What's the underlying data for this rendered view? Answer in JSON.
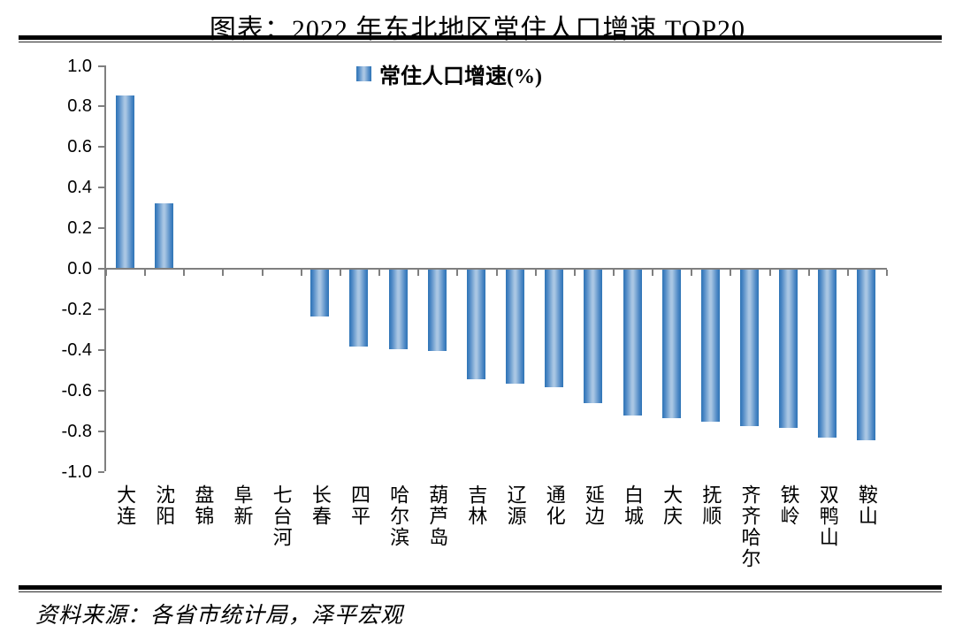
{
  "page": {
    "title": "图表：2022 年东北地区常住人口增速 TOP20",
    "source": "资料来源：各省市统计局，泽平宏观"
  },
  "legend": {
    "label": "常住人口增速(%)"
  },
  "colors": {
    "bar_edge": "#2E74B5",
    "bar_center": "#A9C6E3",
    "axis_line": "#7F7F7F",
    "text": "#000000",
    "rule": "#000000",
    "background": "#FFFFFF"
  },
  "chart_data": {
    "type": "bar",
    "title": "图表：2022 年东北地区常住人口增速 TOP20",
    "categories": [
      "大连",
      "沈阳",
      "盘锦",
      "阜新",
      "七台河",
      "长春",
      "四平",
      "哈尔滨",
      "葫芦岛",
      "吉林",
      "辽源",
      "通化",
      "延边",
      "白城",
      "大庆",
      "抚顺",
      "齐齐哈尔",
      "铁岭",
      "双鸭山",
      "鞍山"
    ],
    "series": [
      {
        "name": "常住人口增速(%)",
        "values": [
          0.85,
          0.32,
          0.0,
          0.0,
          0.0,
          -0.23,
          -0.38,
          -0.39,
          -0.4,
          -0.54,
          -0.56,
          -0.58,
          -0.66,
          -0.72,
          -0.73,
          -0.75,
          -0.77,
          -0.78,
          -0.83,
          -0.84
        ]
      }
    ],
    "xlabel": "",
    "ylabel": "",
    "ylim": [
      -1.0,
      1.0
    ],
    "ytick_step": 0.2,
    "yticks": [
      1.0,
      0.8,
      0.6,
      0.4,
      0.2,
      0.0,
      -0.2,
      -0.4,
      -0.6,
      -0.8,
      -1.0
    ],
    "grid": false,
    "legend_position": "top-center",
    "source": "资料来源：各省市统计局，泽平宏观"
  }
}
